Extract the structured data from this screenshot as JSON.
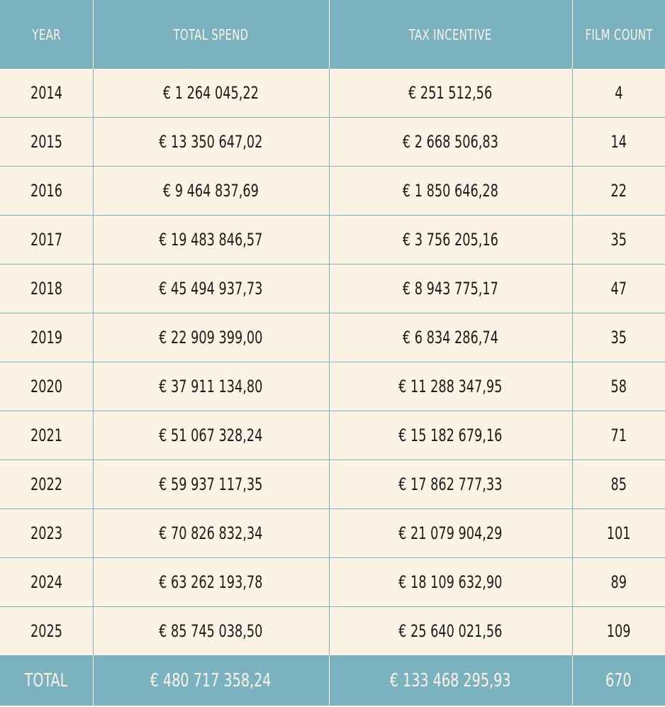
{
  "table": {
    "headers": [
      "YEAR",
      "TOTAL SPEND",
      "TAX INCENTIVE",
      "FILM COUNT"
    ],
    "rows": [
      {
        "year": "2014",
        "total_spend": "€ 1 264 045,22",
        "tax_incentive": "€ 251 512,56",
        "film_count": "4"
      },
      {
        "year": "2015",
        "total_spend": "€ 13 350 647,02",
        "tax_incentive": "€ 2 668 506,83",
        "film_count": "14"
      },
      {
        "year": "2016",
        "total_spend": "€ 9 464 837,69",
        "tax_incentive": "€ 1 850 646,28",
        "film_count": "22"
      },
      {
        "year": "2017",
        "total_spend": "€ 19 483 846,57",
        "tax_incentive": "€ 3 756 205,16",
        "film_count": "35"
      },
      {
        "year": "2018",
        "total_spend": "€ 45 494 937,73",
        "tax_incentive": "€ 8 943 775,17",
        "film_count": "47"
      },
      {
        "year": "2019",
        "total_spend": "€ 22 909 399,00",
        "tax_incentive": "€ 6 834 286,74",
        "film_count": "35"
      },
      {
        "year": "2020",
        "total_spend": "€ 37 911 134,80",
        "tax_incentive": "€ 11 288 347,95",
        "film_count": "58"
      },
      {
        "year": "2021",
        "total_spend": "€ 51 067 328,24",
        "tax_incentive": "€ 15 182 679,16",
        "film_count": "71"
      },
      {
        "year": "2022",
        "total_spend": "€ 59 937 117,35",
        "tax_incentive": "€ 17 862 777,33",
        "film_count": "85"
      },
      {
        "year": "2023",
        "total_spend": "€ 70 826 832,34",
        "tax_incentive": "€ 21 079 904,29",
        "film_count": "101"
      },
      {
        "year": "2024",
        "total_spend": "€ 63 262 193,78",
        "tax_incentive": "€ 18 109 632,90",
        "film_count": "89"
      },
      {
        "year": "2025",
        "total_spend": "€ 85 745 038,50",
        "tax_incentive": "€ 25 640 021,56",
        "film_count": "109"
      }
    ],
    "total": {
      "label": "TOTAL",
      "total_spend": "€ 480 717 358,24",
      "tax_incentive": "€ 133 468 295,93",
      "film_count": "670"
    }
  },
  "colors": {
    "header_bg": "#7bb2c0",
    "row_bg": "#fdf3e4",
    "text": "#1a1a1a"
  }
}
